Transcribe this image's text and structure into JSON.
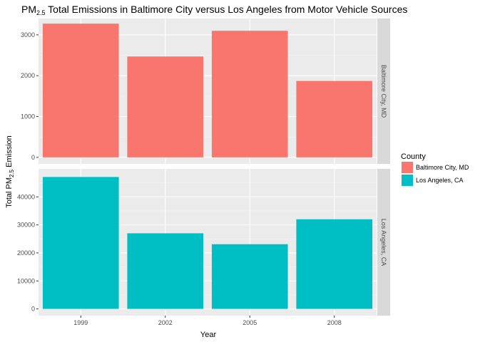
{
  "chart_data": {
    "type": "bar",
    "title": {
      "prefix": "PM",
      "subscript": "2.5",
      "suffix": " Total Emissions in Baltimore City versus Los Angeles from Motor Vehicle Sources"
    },
    "xlabel": "Year",
    "ylabel": {
      "prefix": "Total PM",
      "subscript": "2.5",
      "suffix": " Emission"
    },
    "categories": [
      "1999",
      "2002",
      "2005",
      "2008"
    ],
    "facets": [
      {
        "name": "Baltimore City, MD",
        "strip_label": "Baltimore City, MD",
        "color": "#F8766D",
        "values": [
          3275,
          2470,
          3100,
          1870
        ],
        "ylim": [
          -160,
          3400
        ],
        "yticks": [
          0,
          1000,
          2000,
          3000
        ],
        "ytick_labels": [
          "0",
          "1000",
          "2000",
          "3000"
        ]
      },
      {
        "name": "Los Angeles, CA",
        "strip_label": "Los Angeles, CA",
        "color": "#00BFC4",
        "values": [
          47100,
          27000,
          23100,
          32000
        ],
        "ylim": [
          -2400,
          50000
        ],
        "yticks": [
          0,
          10000,
          20000,
          30000,
          40000
        ],
        "ytick_labels": [
          "0",
          "10000",
          "20000",
          "30000",
          "40000"
        ]
      }
    ],
    "legend": {
      "title": "County",
      "placement": "right",
      "entries": [
        {
          "label": "Baltimore City, MD",
          "color": "#F8766D"
        },
        {
          "label": "Los Angeles, CA",
          "color": "#00BFC4"
        }
      ]
    },
    "grid": true,
    "theme_colors": {
      "panel_background": "#EBEBEB",
      "grid_major": "#FFFFFF",
      "grid_minor": "#F4F4F4",
      "strip_background": "#D9D9D9",
      "axis_text": "#4D4D4D",
      "tick": "#333333"
    }
  }
}
